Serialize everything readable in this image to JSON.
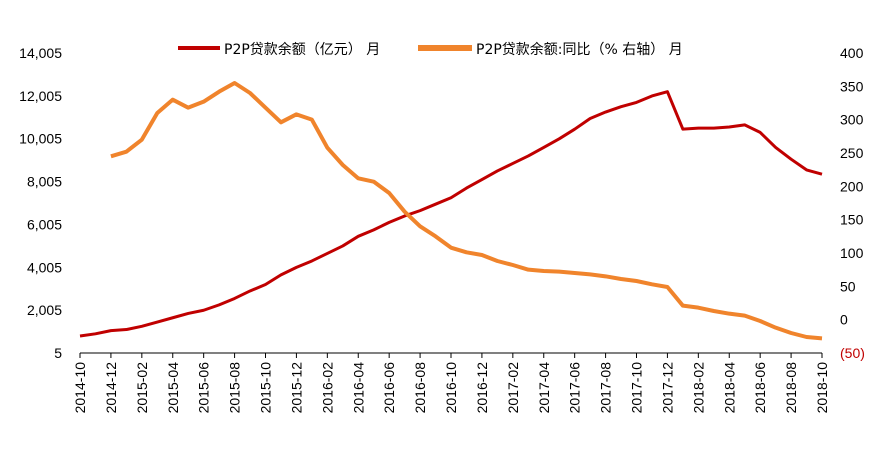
{
  "chart_data": {
    "type": "line",
    "title": "",
    "x": [
      "2014-10",
      "2014-11",
      "2014-12",
      "2015-01",
      "2015-02",
      "2015-03",
      "2015-04",
      "2015-05",
      "2015-06",
      "2015-07",
      "2015-08",
      "2015-09",
      "2015-10",
      "2015-11",
      "2015-12",
      "2016-01",
      "2016-02",
      "2016-03",
      "2016-04",
      "2016-05",
      "2016-06",
      "2016-07",
      "2016-08",
      "2016-09",
      "2016-10",
      "2016-11",
      "2016-12",
      "2017-01",
      "2017-02",
      "2017-03",
      "2017-04",
      "2017-05",
      "2017-06",
      "2017-07",
      "2017-08",
      "2017-09",
      "2017-10",
      "2017-11",
      "2017-12",
      "2018-01",
      "2018-02",
      "2018-03",
      "2018-04",
      "2018-05",
      "2018-06",
      "2018-07",
      "2018-08",
      "2018-09",
      "2018-10"
    ],
    "x_tick_labels": [
      "2014-10",
      "2014-12",
      "2015-02",
      "2015-04",
      "2015-06",
      "2015-08",
      "2015-10",
      "2015-12",
      "2016-02",
      "2016-04",
      "2016-06",
      "2016-08",
      "2016-10",
      "2016-12",
      "2017-02",
      "2017-04",
      "2017-06",
      "2017-08",
      "2017-10",
      "2017-12",
      "2018-02",
      "2018-04",
      "2018-06",
      "2018-08",
      "2018-10"
    ],
    "left_axis": {
      "ylim": [
        5,
        14005
      ],
      "tick_labels": [
        "5",
        "2,005",
        "4,005",
        "6,005",
        "8,005",
        "10,005",
        "12,005",
        "14,005"
      ],
      "tick_values": [
        5,
        2005,
        4005,
        6005,
        8005,
        10005,
        12005,
        14005
      ],
      "color": "#000000"
    },
    "right_axis": {
      "ylim": [
        -50,
        400
      ],
      "tick_labels": [
        "(50)",
        "0",
        "50",
        "100",
        "150",
        "200",
        "250",
        "300",
        "350",
        "400"
      ],
      "tick_values": [
        -50,
        0,
        50,
        100,
        150,
        200,
        250,
        300,
        350,
        400
      ],
      "negative_color": "#c00000"
    },
    "series": [
      {
        "name": "P2P贷款余额（亿元） 月",
        "axis": "left",
        "color": "#c00000",
        "values": [
          800,
          900,
          1050,
          1100,
          1250,
          1450,
          1650,
          1850,
          2000,
          2250,
          2550,
          2900,
          3200,
          3650,
          4000,
          4300,
          4650,
          5000,
          5450,
          5750,
          6100,
          6400,
          6650,
          6950,
          7250,
          7700,
          8100,
          8500,
          8850,
          9200,
          9600,
          10000,
          10450,
          10950,
          11250,
          11500,
          11700,
          12000,
          12200,
          10450,
          10500,
          10500,
          10550,
          10650,
          10300,
          9600,
          9050,
          8550,
          8350
        ]
      },
      {
        "name": "P2P贷款余额:同比（% 右轴） 月",
        "axis": "right",
        "color": "#f0842c",
        "values": [
          null,
          null,
          245,
          252,
          270,
          310,
          330,
          318,
          327,
          342,
          355,
          340,
          318,
          296,
          308,
          300,
          258,
          232,
          212,
          207,
          190,
          162,
          140,
          125,
          108,
          101,
          97,
          88,
          82,
          75,
          73,
          72,
          70,
          68,
          65,
          61,
          58,
          53,
          49,
          21,
          18,
          13,
          9,
          6,
          -2,
          -12,
          -20,
          -26,
          -28
        ]
      }
    ]
  }
}
